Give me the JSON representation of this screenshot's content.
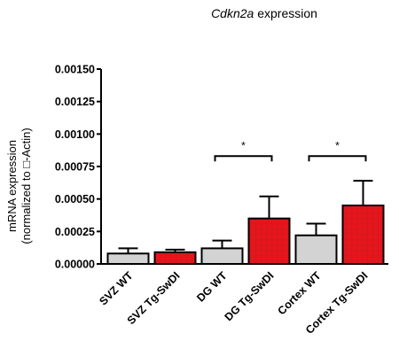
{
  "chart_data": {
    "type": "bar",
    "title_italic": "Cdkn2a",
    "title_rest": " expression",
    "ylabel_line1": "mRNA expression",
    "ylabel_line2": "(normalized to □-Actin)",
    "xlabel": "",
    "categories": [
      "SVZ WT",
      "SVZ Tg-SwDI",
      "DG WT",
      "DG Tg-SwDI",
      "Cortex WT",
      "Cortex Tg-SwDI"
    ],
    "values": [
      8e-05,
      9e-05,
      0.00012,
      0.00035,
      0.00022,
      0.00045
    ],
    "errors": [
      4e-05,
      2e-05,
      6e-05,
      0.00017,
      9e-05,
      0.00019
    ],
    "group": [
      "WT",
      "Tg-SwDI",
      "WT",
      "Tg-SwDI",
      "WT",
      "Tg-SwDI"
    ],
    "ylim": [
      0,
      0.0015
    ],
    "yticks": [
      "0.00000",
      "0.00025",
      "0.00050",
      "0.00075",
      "0.00100",
      "0.00125",
      "0.00150"
    ],
    "significance": [
      {
        "from": 2,
        "to": 3,
        "label": "*",
        "y": 0.00083
      },
      {
        "from": 4,
        "to": 5,
        "label": "*",
        "y": 0.00083
      }
    ],
    "colors": {
      "WT": "#d3d3d3",
      "Tg-SwDI": "#e8141c",
      "grid": "#b22222"
    },
    "legend": "none"
  }
}
